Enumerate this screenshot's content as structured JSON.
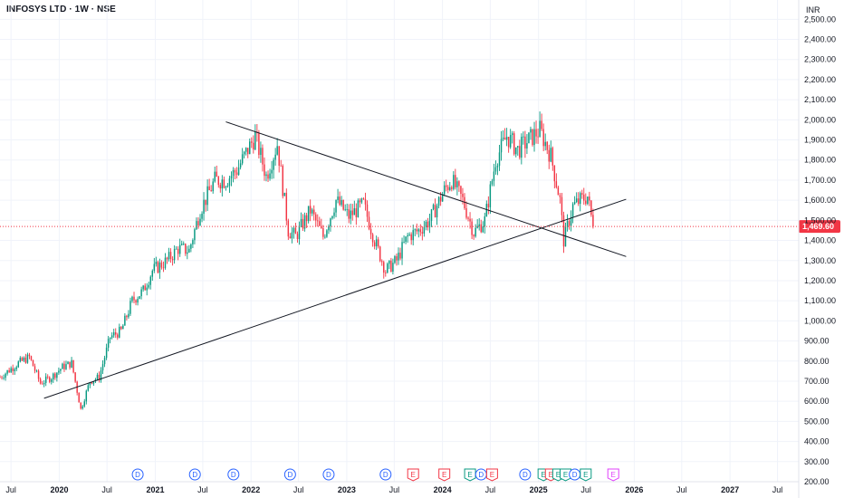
{
  "header": {
    "title": "INFOSYS LTD · 1W · NSE"
  },
  "chart_data": {
    "type": "candlestick",
    "title": "INFOSYS LTD · 1W · NSE",
    "currency_label": "INR",
    "interval": "1W",
    "exchange": "NSE",
    "y_axis": {
      "range": [
        200,
        2560
      ],
      "ticks": [
        2500,
        2400,
        2300,
        2200,
        2100,
        2000,
        1900,
        1800,
        1700,
        1600,
        1500,
        1400,
        1300,
        1200,
        1100,
        1000,
        900,
        800,
        700,
        600,
        500,
        400,
        300,
        200
      ],
      "tick_labels": [
        "2,500.00",
        "2,400.00",
        "2,300.00",
        "2,200.00",
        "2,100.00",
        "2,000.00",
        "1,900.00",
        "1,800.00",
        "1,700.00",
        "1,600.00",
        "1,500.00",
        "1,400.00",
        "1,300.00",
        "1,200.00",
        "1,100.00",
        "1,000.00",
        "900.00",
        "800.00",
        "700.00",
        "600.00",
        "500.00",
        "400.00",
        "300.00",
        "200.00"
      ]
    },
    "x_axis": {
      "range": [
        "2019-05-20",
        "2027-09-20"
      ],
      "ticks": [
        {
          "label": "Jul",
          "date": "2019-07-01"
        },
        {
          "label": "2020",
          "date": "2020-01-01"
        },
        {
          "label": "Jul",
          "date": "2020-07-01"
        },
        {
          "label": "2021",
          "date": "2021-01-01"
        },
        {
          "label": "Jul",
          "date": "2021-07-01"
        },
        {
          "label": "2022",
          "date": "2022-01-01"
        },
        {
          "label": "Jul",
          "date": "2022-07-01"
        },
        {
          "label": "2023",
          "date": "2023-01-01"
        },
        {
          "label": "Jul",
          "date": "2023-07-01"
        },
        {
          "label": "2024",
          "date": "2024-01-01"
        },
        {
          "label": "Jul",
          "date": "2024-07-01"
        },
        {
          "label": "2025",
          "date": "2025-01-01"
        },
        {
          "label": "Jul",
          "date": "2025-07-01"
        },
        {
          "label": "2026",
          "date": "2026-01-01"
        },
        {
          "label": "Jul",
          "date": "2026-07-01"
        },
        {
          "label": "2027",
          "date": "2027-01-01"
        },
        {
          "label": "Jul",
          "date": "2027-07-01"
        }
      ]
    },
    "last_price": {
      "value": 1469.6,
      "label": "1,469.60",
      "color": "#f23645"
    },
    "colors": {
      "up": "#089981",
      "down": "#f23645",
      "trendline": "#131722",
      "dividend": "#2962ff",
      "earnings_missed": "#f23645",
      "earnings_beat": "#089981",
      "earnings_upcoming": "#e040fb"
    },
    "price_path": [
      {
        "date": "2019-05-20",
        "price": 720
      },
      {
        "date": "2019-07-29",
        "price": 790
      },
      {
        "date": "2019-09-09",
        "price": 820
      },
      {
        "date": "2019-10-21",
        "price": 690
      },
      {
        "date": "2019-12-02",
        "price": 720
      },
      {
        "date": "2020-01-13",
        "price": 770
      },
      {
        "date": "2020-02-17",
        "price": 790
      },
      {
        "date": "2020-03-23",
        "price": 560
      },
      {
        "date": "2020-04-27",
        "price": 700
      },
      {
        "date": "2020-06-01",
        "price": 720
      },
      {
        "date": "2020-07-13",
        "price": 920
      },
      {
        "date": "2020-08-24",
        "price": 950
      },
      {
        "date": "2020-10-05",
        "price": 1100
      },
      {
        "date": "2020-11-16",
        "price": 1150
      },
      {
        "date": "2020-12-21",
        "price": 1250
      },
      {
        "date": "2021-02-15",
        "price": 1300
      },
      {
        "date": "2021-03-29",
        "price": 1360
      },
      {
        "date": "2021-05-10",
        "price": 1350
      },
      {
        "date": "2021-06-21",
        "price": 1550
      },
      {
        "date": "2021-08-16",
        "price": 1700
      },
      {
        "date": "2021-09-27",
        "price": 1700
      },
      {
        "date": "2021-11-08",
        "price": 1750
      },
      {
        "date": "2022-01-17",
        "price": 1920
      },
      {
        "date": "2022-02-28",
        "price": 1720
      },
      {
        "date": "2022-04-11",
        "price": 1880
      },
      {
        "date": "2022-05-23",
        "price": 1450
      },
      {
        "date": "2022-06-20",
        "price": 1420
      },
      {
        "date": "2022-08-15",
        "price": 1550
      },
      {
        "date": "2022-10-03",
        "price": 1420
      },
      {
        "date": "2022-11-21",
        "price": 1600
      },
      {
        "date": "2023-01-09",
        "price": 1520
      },
      {
        "date": "2023-03-06",
        "price": 1580
      },
      {
        "date": "2023-04-17",
        "price": 1400
      },
      {
        "date": "2023-05-29",
        "price": 1250
      },
      {
        "date": "2023-07-10",
        "price": 1300
      },
      {
        "date": "2023-08-21",
        "price": 1420
      },
      {
        "date": "2023-10-02",
        "price": 1450
      },
      {
        "date": "2023-11-13",
        "price": 1500
      },
      {
        "date": "2024-01-08",
        "price": 1650
      },
      {
        "date": "2024-02-05",
        "price": 1700
      },
      {
        "date": "2024-03-18",
        "price": 1600
      },
      {
        "date": "2024-04-29",
        "price": 1440
      },
      {
        "date": "2024-06-10",
        "price": 1500
      },
      {
        "date": "2024-07-22",
        "price": 1800
      },
      {
        "date": "2024-09-02",
        "price": 1920
      },
      {
        "date": "2024-10-14",
        "price": 1850
      },
      {
        "date": "2024-11-25",
        "price": 1900
      },
      {
        "date": "2025-01-06",
        "price": 1950
      },
      {
        "date": "2025-02-17",
        "price": 1820
      },
      {
        "date": "2025-03-24",
        "price": 1600
      },
      {
        "date": "2025-04-07",
        "price": 1400
      },
      {
        "date": "2025-05-12",
        "price": 1570
      },
      {
        "date": "2025-06-09",
        "price": 1600
      },
      {
        "date": "2025-07-07",
        "price": 1620
      },
      {
        "date": "2025-07-28",
        "price": 1469.6
      }
    ],
    "trendlines": [
      {
        "from": {
          "date": "2019-11-04",
          "price": 615
        },
        "to": {
          "date": "2025-12-01",
          "price": 1605
        }
      },
      {
        "from": {
          "date": "2021-09-27",
          "price": 1990
        },
        "to": {
          "date": "2025-12-01",
          "price": 1320
        }
      }
    ],
    "events": [
      {
        "type": "D",
        "kind": "dividend",
        "date": "2020-10-26"
      },
      {
        "type": "D",
        "kind": "dividend",
        "date": "2021-06-01"
      },
      {
        "type": "D",
        "kind": "dividend",
        "date": "2021-10-26"
      },
      {
        "type": "D",
        "kind": "dividend",
        "date": "2022-05-30"
      },
      {
        "type": "D",
        "kind": "dividend",
        "date": "2022-10-24"
      },
      {
        "type": "D",
        "kind": "dividend",
        "date": "2023-05-29"
      },
      {
        "type": "E",
        "kind": "earnings_missed",
        "date": "2023-09-11"
      },
      {
        "type": "E",
        "kind": "earnings_missed",
        "date": "2024-01-08"
      },
      {
        "type": "E",
        "kind": "earnings_beat",
        "date": "2024-04-15"
      },
      {
        "type": "D",
        "kind": "dividend",
        "date": "2024-05-27"
      },
      {
        "type": "E",
        "kind": "earnings_missed",
        "date": "2024-07-08"
      },
      {
        "type": "D",
        "kind": "dividend",
        "date": "2024-11-11"
      },
      {
        "type": "E",
        "kind": "earnings_beat",
        "date": "2025-01-20"
      },
      {
        "type": "E",
        "kind": "earnings_missed",
        "date": "2025-02-17"
      },
      {
        "type": "E",
        "kind": "earnings_beat",
        "date": "2025-03-17"
      },
      {
        "type": "E",
        "kind": "earnings_beat",
        "date": "2025-04-14"
      },
      {
        "type": "D",
        "kind": "dividend",
        "date": "2025-05-19"
      },
      {
        "type": "E",
        "kind": "earnings_beat",
        "date": "2025-06-30"
      },
      {
        "type": "E",
        "kind": "earnings_upcoming",
        "date": "2025-10-13"
      }
    ]
  }
}
